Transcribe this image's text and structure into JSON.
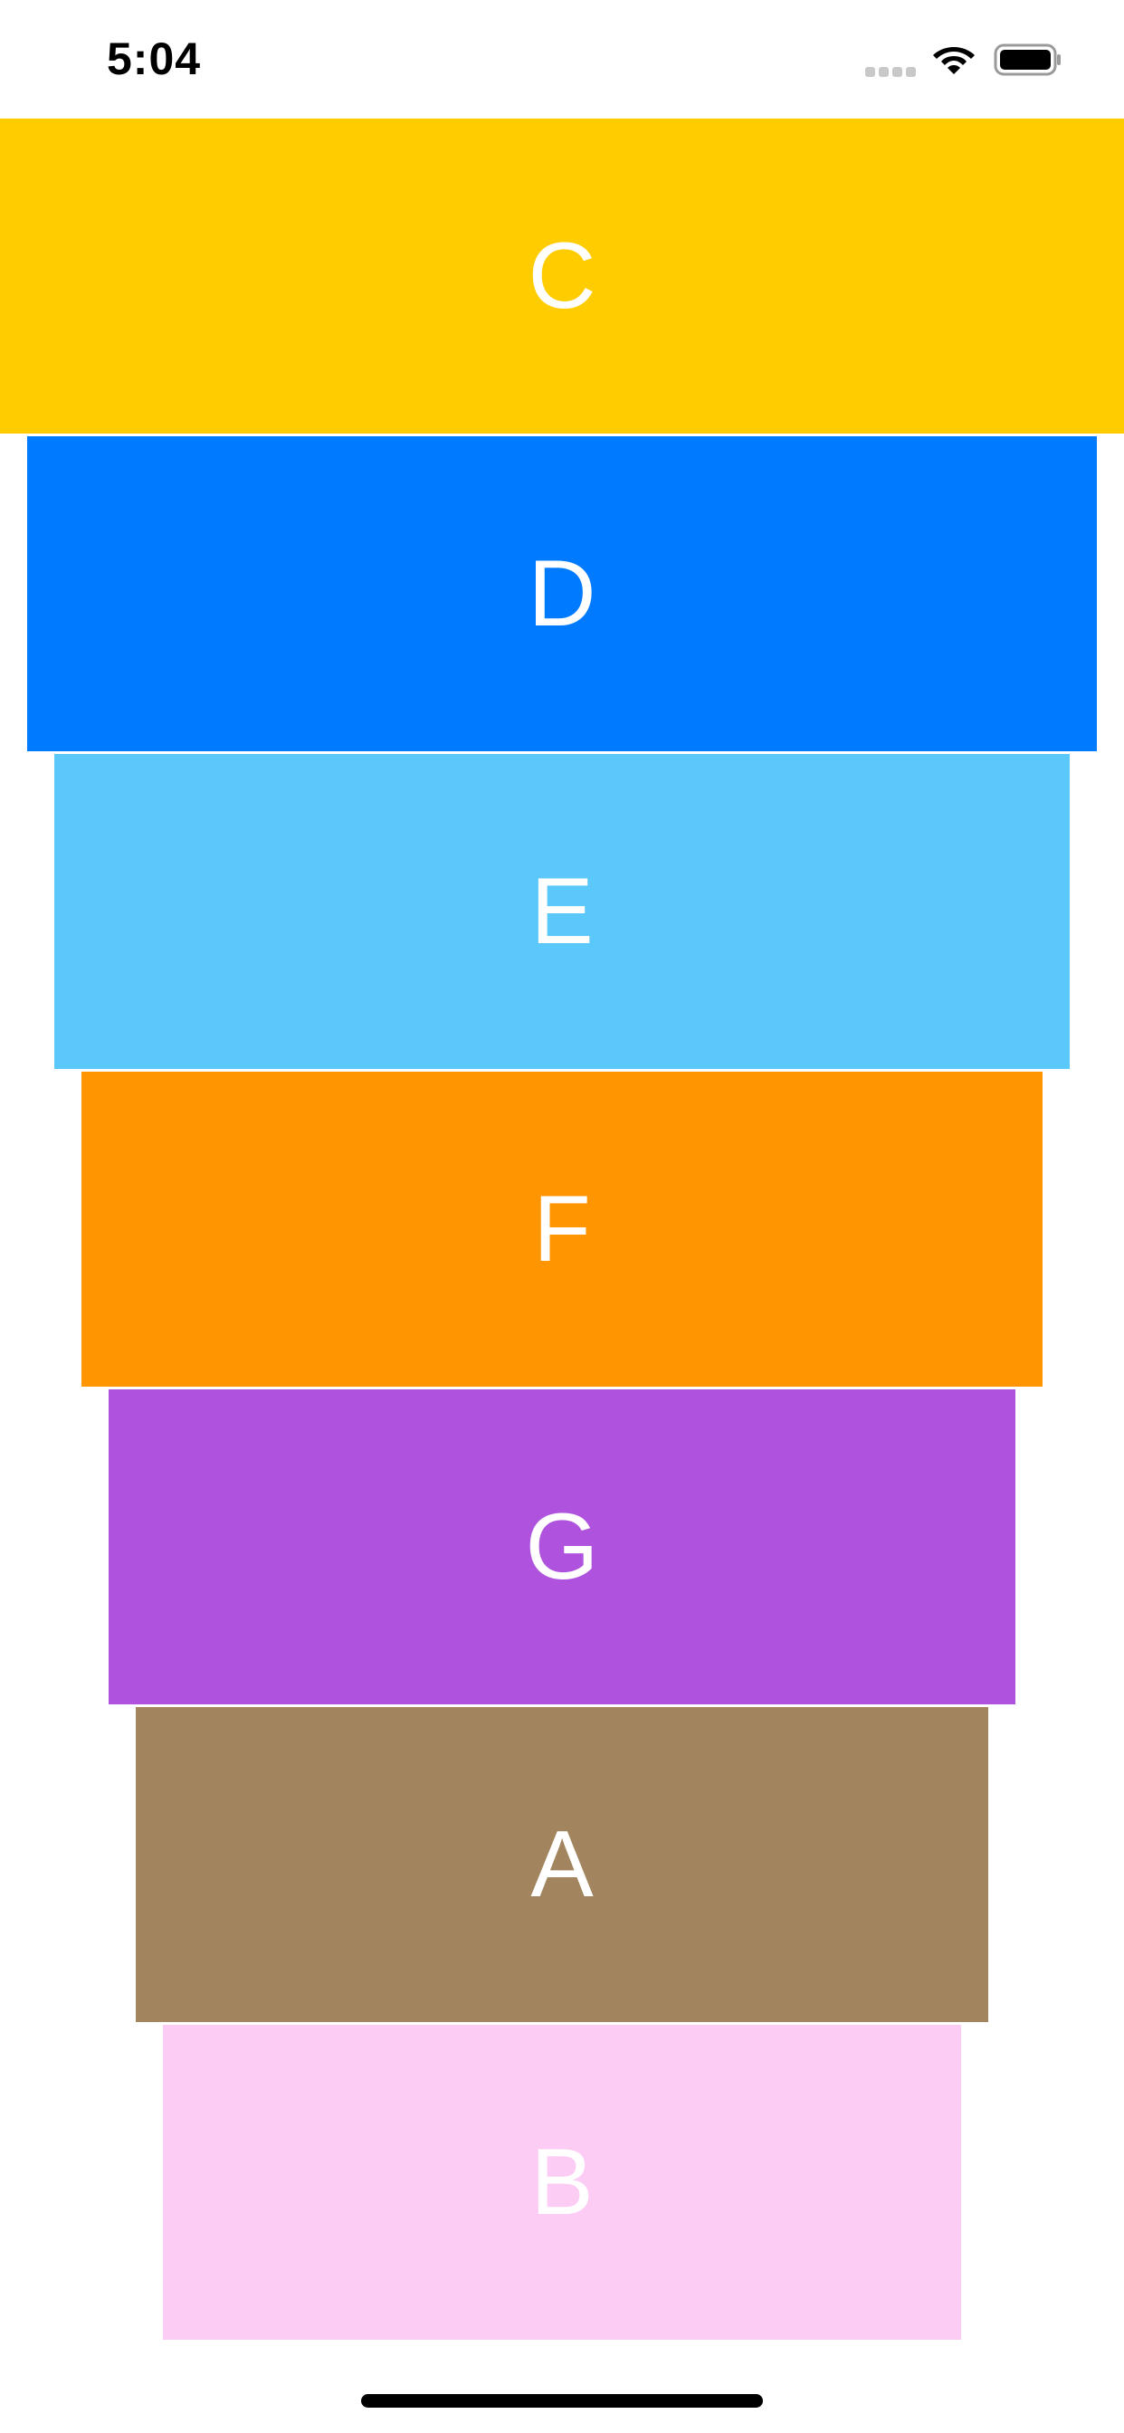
{
  "status_bar": {
    "time": "5:04"
  },
  "cards": [
    {
      "label": "C",
      "color": "#FFCC00"
    },
    {
      "label": "D",
      "color": "#007AFF"
    },
    {
      "label": "E",
      "color": "#5AC8FA"
    },
    {
      "label": "F",
      "color": "#FF9500"
    },
    {
      "label": "G",
      "color": "#AF52DE"
    },
    {
      "label": "A",
      "color": "#A2845E"
    },
    {
      "label": "B",
      "color": "#FDCCF5"
    }
  ],
  "icons": {
    "signal": "cellular-signal-icon",
    "wifi": "wifi-icon",
    "battery": "battery-icon"
  }
}
